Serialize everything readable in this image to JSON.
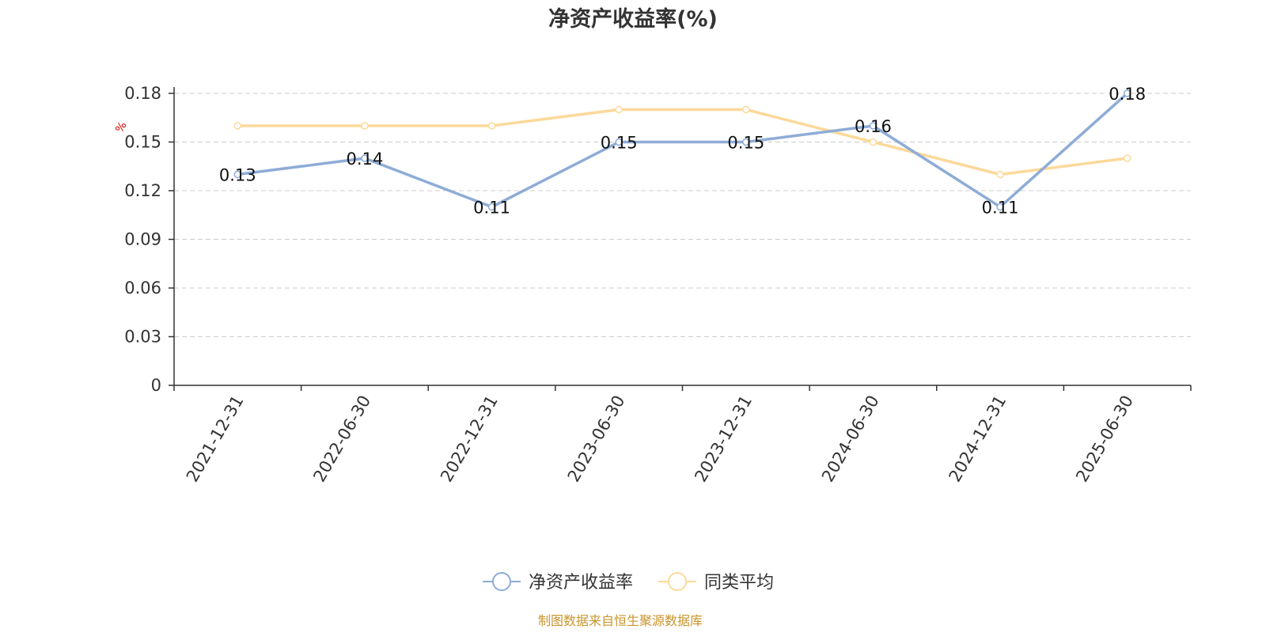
{
  "chart_data": {
    "type": "line",
    "title": "净资产收益率(%)",
    "ylabel": "%",
    "categories": [
      "2021-12-31",
      "2022-06-30",
      "2022-12-31",
      "2023-06-30",
      "2023-12-31",
      "2024-06-30",
      "2024-12-31",
      "2025-06-30"
    ],
    "yticks": [
      "0",
      "0.03",
      "0.06",
      "0.09",
      "0.12",
      "0.15",
      "0.18"
    ],
    "ylim": [
      0,
      0.18
    ],
    "grid": true,
    "legend_position": "bottom",
    "series": [
      {
        "name": "净资产收益率",
        "color": "#8eacd6",
        "values": [
          0.13,
          0.14,
          0.11,
          0.15,
          0.15,
          0.16,
          0.11,
          0.18
        ],
        "labels": [
          "0.13",
          "0.14",
          "0.11",
          "0.15",
          "0.15",
          "0.16",
          "0.11",
          "0.18"
        ]
      },
      {
        "name": "同类平均",
        "color": "#fcd99a",
        "values": [
          0.16,
          0.16,
          0.16,
          0.17,
          0.17,
          0.15,
          0.13,
          0.14
        ]
      }
    ]
  },
  "source": "制图数据来自恒生聚源数据库"
}
